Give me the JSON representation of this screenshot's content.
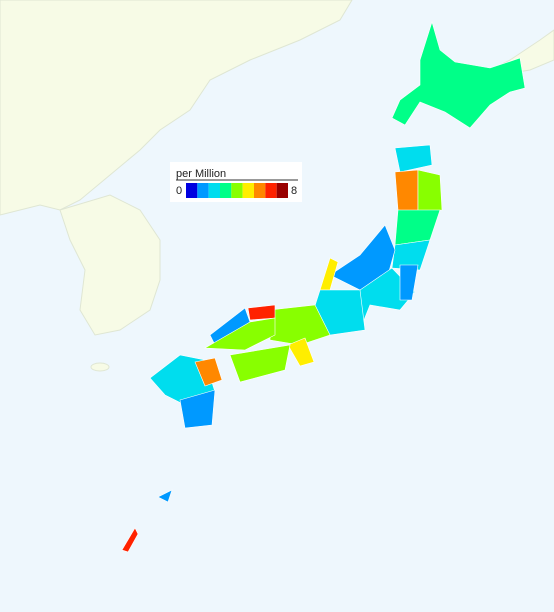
{
  "map": {
    "legend": {
      "title": "per Million",
      "min": 0,
      "max": 8,
      "colors": [
        "#0000e0",
        "#0099ff",
        "#00ddee",
        "#00ff88",
        "#88ff00",
        "#ffee00",
        "#ff8800",
        "#ff2200",
        "#990000"
      ]
    },
    "values": [
      3,
      2,
      6,
      4,
      3,
      2,
      1,
      2,
      1,
      5,
      2,
      3.5,
      5,
      1,
      7,
      3.5,
      3.5,
      2,
      6,
      1,
      6.5,
      1
    ]
  }
}
